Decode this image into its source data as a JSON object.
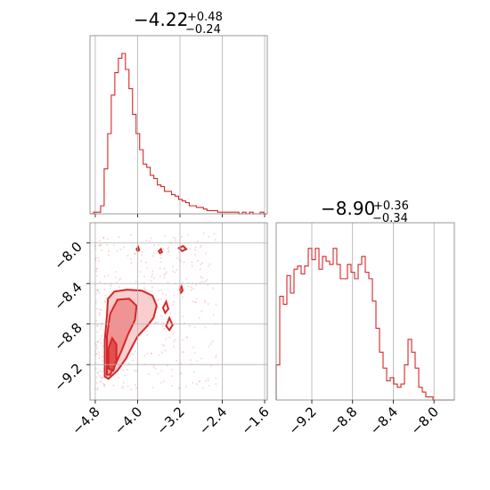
{
  "chart_data": {
    "type": "corner",
    "color": "#d62728",
    "titles": {
      "x1": {
        "value": "−4.22",
        "plus": "+0.48",
        "minus": "−0.24"
      },
      "x2": {
        "value": "−8.90",
        "plus": "+0.36",
        "minus": "−0.34"
      }
    },
    "x1_range": [
      -4.9,
      -1.55
    ],
    "x2_range": [
      -9.55,
      -7.8
    ],
    "x1_ticks": [
      {
        "v": -4.8,
        "label": "−4.8"
      },
      {
        "v": -4.0,
        "label": "−4.0"
      },
      {
        "v": -3.2,
        "label": "−3.2"
      },
      {
        "v": -2.4,
        "label": "−2.4"
      },
      {
        "v": -1.6,
        "label": "−1.6"
      }
    ],
    "x2_ticks": [
      {
        "v": -9.2,
        "label": "−9.2"
      },
      {
        "v": -8.8,
        "label": "−8.8"
      },
      {
        "v": -8.4,
        "label": "−8.4"
      },
      {
        "v": -8.0,
        "label": "−8.0"
      }
    ],
    "hist_x1": [
      0.0,
      0.01,
      0.01,
      0.05,
      0.28,
      0.5,
      0.74,
      0.88,
      0.97,
      1.0,
      0.9,
      0.78,
      0.62,
      0.5,
      0.4,
      0.31,
      0.29,
      0.24,
      0.22,
      0.18,
      0.17,
      0.14,
      0.14,
      0.12,
      0.11,
      0.09,
      0.08,
      0.07,
      0.05,
      0.05,
      0.04,
      0.04,
      0.03,
      0.02,
      0.02,
      0.02,
      0.01,
      0.01,
      0.01,
      0.01,
      0.01,
      0.01,
      0.0,
      0.01,
      0.0,
      0.01,
      0.0,
      0.0,
      0.01,
      0.0
    ],
    "hist_x2": [
      0.22,
      0.65,
      0.6,
      0.78,
      0.67,
      0.82,
      0.84,
      0.79,
      0.84,
      0.95,
      0.88,
      0.95,
      0.82,
      0.9,
      0.87,
      0.85,
      0.95,
      0.85,
      0.76,
      0.76,
      0.85,
      0.8,
      0.76,
      0.85,
      0.9,
      0.8,
      0.76,
      0.62,
      0.45,
      0.3,
      0.2,
      0.12,
      0.14,
      0.1,
      0.08,
      0.1,
      0.22,
      0.38,
      0.3,
      0.2,
      0.08,
      0.05,
      0.02,
      0.02,
      0.0,
      0.0,
      0.0,
      0.0,
      0.0,
      0.0
    ],
    "contours": [
      {
        "level": "outer",
        "points": [
          [
            -4.62,
            -9.32
          ],
          [
            -4.62,
            -8.96
          ],
          [
            -4.58,
            -8.72
          ],
          [
            -4.56,
            -8.55
          ],
          [
            -4.44,
            -8.48
          ],
          [
            -4.2,
            -8.46
          ],
          [
            -3.92,
            -8.47
          ],
          [
            -3.72,
            -8.52
          ],
          [
            -3.64,
            -8.62
          ],
          [
            -3.7,
            -8.74
          ],
          [
            -3.82,
            -8.82
          ],
          [
            -4.0,
            -8.92
          ],
          [
            -4.12,
            -9.04
          ],
          [
            -4.22,
            -9.14
          ],
          [
            -4.38,
            -9.26
          ],
          [
            -4.55,
            -9.34
          ]
        ]
      },
      {
        "level": "mid",
        "points": [
          [
            -4.58,
            -9.3
          ],
          [
            -4.58,
            -8.92
          ],
          [
            -4.52,
            -8.7
          ],
          [
            -4.38,
            -8.56
          ],
          [
            -4.16,
            -8.55
          ],
          [
            -4.02,
            -8.62
          ],
          [
            -4.05,
            -8.76
          ],
          [
            -4.18,
            -8.9
          ],
          [
            -4.3,
            -9.06
          ],
          [
            -4.42,
            -9.2
          ],
          [
            -4.52,
            -9.3
          ]
        ]
      },
      {
        "level": "inner",
        "points": [
          [
            -4.55,
            -9.24
          ],
          [
            -4.55,
            -9.04
          ],
          [
            -4.48,
            -8.94
          ],
          [
            -4.4,
            -9.0
          ],
          [
            -4.4,
            -9.16
          ],
          [
            -4.46,
            -9.26
          ]
        ]
      },
      {
        "level": "island",
        "points": [
          [
            -3.46,
            -8.82
          ],
          [
            -3.4,
            -8.74
          ],
          [
            -3.34,
            -8.81
          ],
          [
            -3.4,
            -8.86
          ]
        ]
      },
      {
        "level": "island",
        "points": [
          [
            -3.52,
            -8.64
          ],
          [
            -3.46,
            -8.58
          ],
          [
            -3.42,
            -8.65
          ],
          [
            -3.48,
            -8.69
          ]
        ]
      },
      {
        "level": "island",
        "points": [
          [
            -4.02,
            -8.06
          ],
          [
            -3.99,
            -8.04
          ],
          [
            -3.97,
            -8.07
          ],
          [
            -4.0,
            -8.08
          ]
        ]
      },
      {
        "level": "island",
        "points": [
          [
            -3.6,
            -8.08
          ],
          [
            -3.56,
            -8.06
          ],
          [
            -3.54,
            -8.09
          ],
          [
            -3.58,
            -8.1
          ]
        ]
      },
      {
        "level": "island",
        "points": [
          [
            -3.22,
            -8.05
          ],
          [
            -3.14,
            -8.03
          ],
          [
            -3.08,
            -8.06
          ],
          [
            -3.16,
            -8.08
          ]
        ]
      },
      {
        "level": "island",
        "points": [
          [
            -3.2,
            -8.46
          ],
          [
            -3.17,
            -8.43
          ],
          [
            -3.15,
            -8.47
          ],
          [
            -3.18,
            -8.49
          ]
        ]
      }
    ]
  }
}
